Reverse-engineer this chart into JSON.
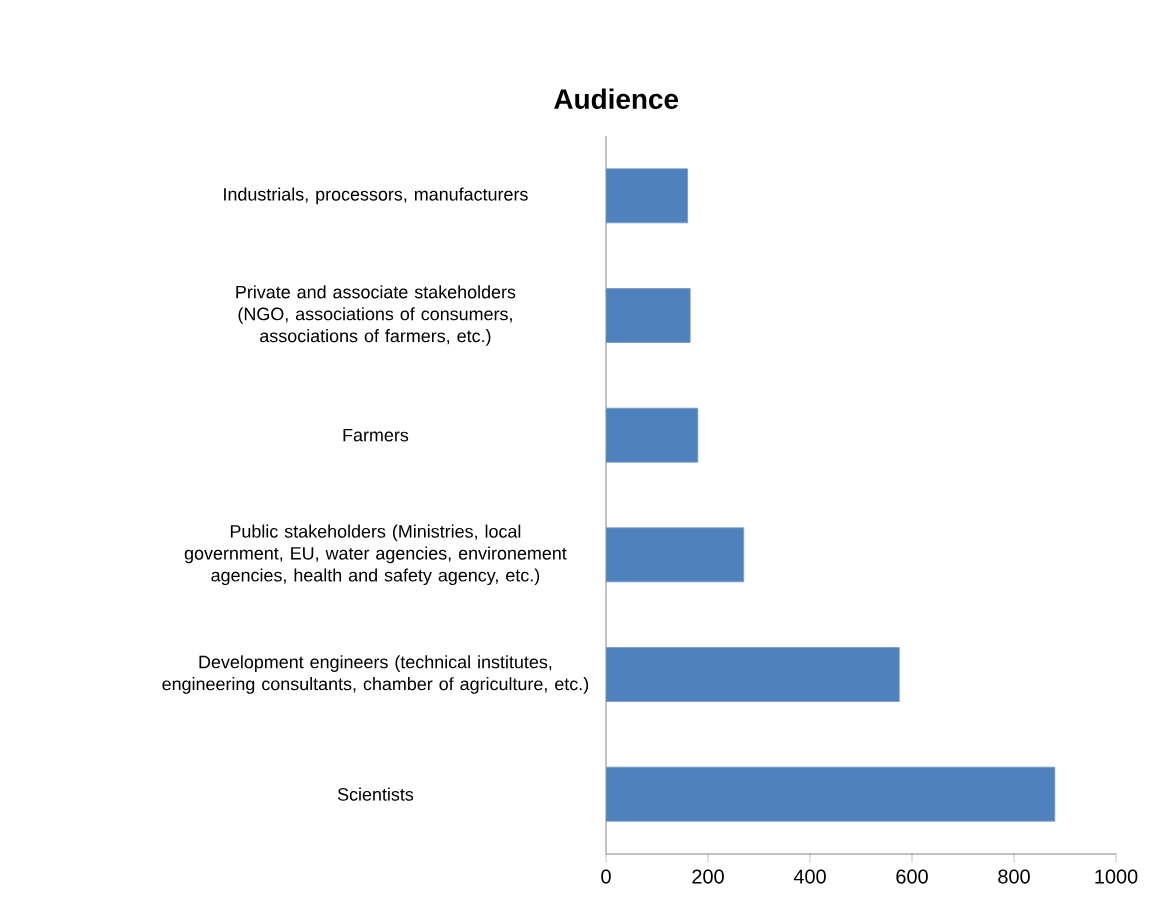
{
  "chart_data": {
    "type": "bar",
    "orientation": "horizontal",
    "title": "Audience",
    "categories": [
      "Industrials, processors, manufacturers",
      "Private and associate stakeholders (NGO, associations of consumers, associations of farmers, etc.)",
      "Farmers",
      "Public stakeholders (Ministries, local government, EU, water agencies, environement agencies, health and safety agency, etc.)",
      "Development engineers (technical institutes, engineering consultants, chamber of agriculture, etc.)",
      "Scientists"
    ],
    "values": [
      160,
      165,
      180,
      270,
      575,
      880
    ],
    "color": "#4f81bd",
    "xlim": [
      0,
      1000
    ],
    "xticks": [
      0,
      200,
      400,
      600,
      800,
      1000
    ],
    "grid": false
  }
}
